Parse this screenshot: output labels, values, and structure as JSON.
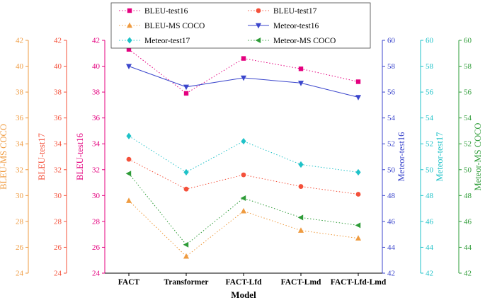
{
  "figure": {
    "background": "#ffffff"
  },
  "chart_data": {
    "type": "line",
    "title": "",
    "xlabel": "Model",
    "grid": false,
    "legend": {
      "position": "top-center",
      "columns": 2,
      "border": true
    },
    "categories": [
      "FACT",
      "Transformer",
      "FACT-Lfd",
      "FACT-Lmd",
      "FACT-Lfd-Lmd"
    ],
    "axes": {
      "bleu": {
        "min": 24,
        "max": 42,
        "step": 2
      },
      "meteor": {
        "min": 42,
        "max": 60,
        "step": 2
      }
    },
    "y_axes": [
      {
        "label": "BLEU-MS COCO",
        "side": "left",
        "offset": 2,
        "scale": "bleu",
        "color": "#ef9b40"
      },
      {
        "label": "BLEU-test17",
        "side": "left",
        "offset": 1,
        "scale": "bleu",
        "color": "#f4503a"
      },
      {
        "label": "BLEU-test16",
        "side": "left",
        "offset": 0,
        "scale": "bleu",
        "color": "#e4007f"
      },
      {
        "label": "Meteor-test16",
        "side": "right",
        "offset": 0,
        "scale": "meteor",
        "color": "#3b46cc"
      },
      {
        "label": "Meteor-test17",
        "side": "right",
        "offset": 1,
        "scale": "meteor",
        "color": "#1fc2c8"
      },
      {
        "label": "Meteor-MS COCO",
        "side": "right",
        "offset": 2,
        "scale": "meteor",
        "color": "#2e9c38"
      }
    ],
    "series": [
      {
        "name": "BLEU-test16",
        "scale": "bleu",
        "color": "#e4007f",
        "marker": "square",
        "line_style": "dotted",
        "values": [
          41.3,
          37.9,
          40.6,
          39.8,
          38.8
        ]
      },
      {
        "name": "BLEU-test17",
        "scale": "bleu",
        "color": "#f4503a",
        "marker": "circle",
        "line_style": "dotted",
        "values": [
          32.8,
          30.5,
          31.6,
          30.7,
          30.1
        ]
      },
      {
        "name": "BLEU-MS COCO",
        "scale": "bleu",
        "color": "#ef9b40",
        "marker": "triangle-up",
        "line_style": "dotted",
        "values": [
          29.6,
          25.3,
          28.8,
          27.3,
          26.7
        ]
      },
      {
        "name": "Meteor-test16",
        "scale": "meteor",
        "color": "#3b46cc",
        "marker": "triangle-down",
        "line_style": "solid",
        "values": [
          58.0,
          56.4,
          57.1,
          56.7,
          55.6
        ]
      },
      {
        "name": "Meteor-test17",
        "scale": "meteor",
        "color": "#1fc2c8",
        "marker": "diamond",
        "line_style": "dotted",
        "values": [
          52.6,
          49.8,
          52.2,
          50.4,
          49.8
        ]
      },
      {
        "name": "Meteor-MS COCO",
        "scale": "meteor",
        "color": "#2e9c38",
        "marker": "triangle-left",
        "line_style": "dotted",
        "values": [
          49.7,
          44.2,
          47.8,
          46.3,
          45.7
        ]
      }
    ]
  }
}
